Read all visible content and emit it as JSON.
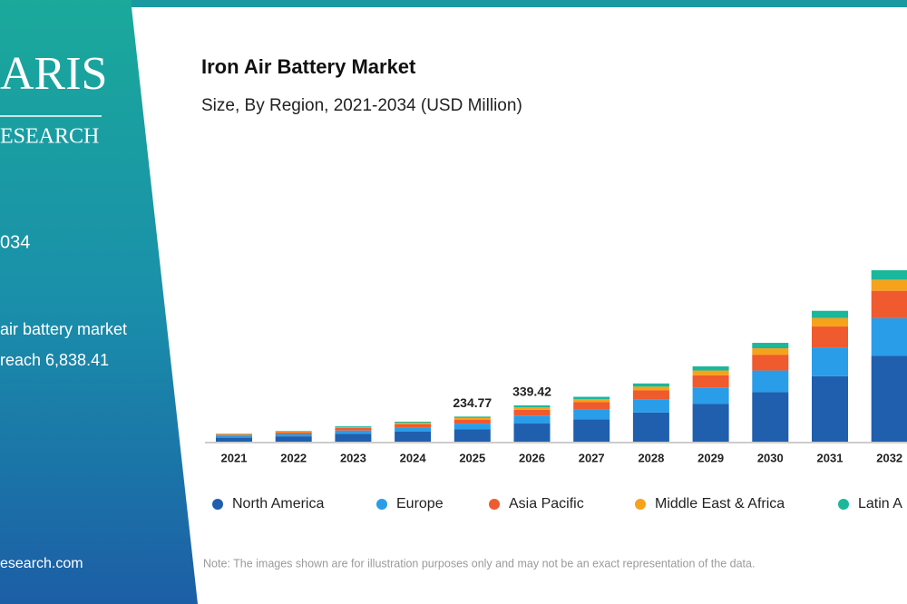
{
  "panel": {
    "brand": "ARIS",
    "brand_sub": "ESEARCH",
    "period": "034",
    "text_line1": "air battery market",
    "text_line2": "reach 6,838.41",
    "website": "esearch.com"
  },
  "chart_data": {
    "type": "bar",
    "stacked": true,
    "title": "Iron Air Battery Market",
    "subtitle": "Size, By Region, 2021-2034 (USD Million)",
    "categories": [
      "2021",
      "2022",
      "2023",
      "2024",
      "2025",
      "2026",
      "2027",
      "2028",
      "2029",
      "2030",
      "2031",
      "2032"
    ],
    "series": [
      {
        "name": "North America",
        "color": "#1f5fae",
        "values": [
          37.4,
          50,
          72.5,
          93.5,
          117.4,
          169.7,
          210,
          272.5,
          352.5,
          462.5,
          612.5,
          802.5
        ]
      },
      {
        "name": "Europe",
        "color": "#2a9de8",
        "values": [
          16.5,
          22,
          31.9,
          41.1,
          51.6,
          74.7,
          92.4,
          119.9,
          155.1,
          203.5,
          269.5,
          353.1
        ]
      },
      {
        "name": "Asia Pacific",
        "color": "#ef5a2e",
        "values": [
          12,
          16,
          23.2,
          29.9,
          37.6,
          54.3,
          67.2,
          87.2,
          112.8,
          148,
          196,
          256.8
        ]
      },
      {
        "name": "Middle East & Africa",
        "color": "#f7a21b",
        "values": [
          4.9,
          6.5,
          9.4,
          12.2,
          15.3,
          22.1,
          27.3,
          35.4,
          45.8,
          60.1,
          79.6,
          104.3
        ]
      },
      {
        "name": "Latin A",
        "color": "#1bb79b",
        "values": [
          4.2,
          5.5,
          8,
          10.3,
          12.87,
          18.62,
          23.1,
          30,
          38.8,
          50.9,
          67.4,
          88.3
        ]
      }
    ],
    "totals": [
      null,
      null,
      null,
      null,
      234.77,
      339.42,
      null,
      null,
      null,
      null,
      null,
      null
    ],
    "ylim": [
      0,
      1800
    ],
    "note": "Note: The images shown are for illustration purposes only and may not be an exact representation of the data."
  }
}
